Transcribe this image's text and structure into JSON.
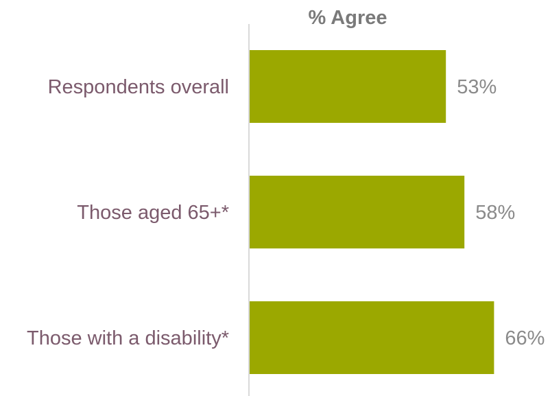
{
  "chart_data": {
    "type": "bar",
    "orientation": "horizontal",
    "title": "% Agree",
    "categories": [
      "Respondents overall",
      "Those aged 65+*",
      "Those with a disability*"
    ],
    "values": [
      53,
      58,
      66
    ],
    "value_labels": [
      "53%",
      "58%",
      "66%"
    ],
    "xlabel": "",
    "ylabel": "",
    "xlim": [
      0,
      100
    ],
    "grid": false,
    "legend": "none"
  },
  "colors": {
    "bar": "#9ba800",
    "category_text": "#7b5a6c",
    "value_text": "#8a8a8a",
    "title_text": "#7a7a7a",
    "axis_line": "#d9d9d9"
  }
}
